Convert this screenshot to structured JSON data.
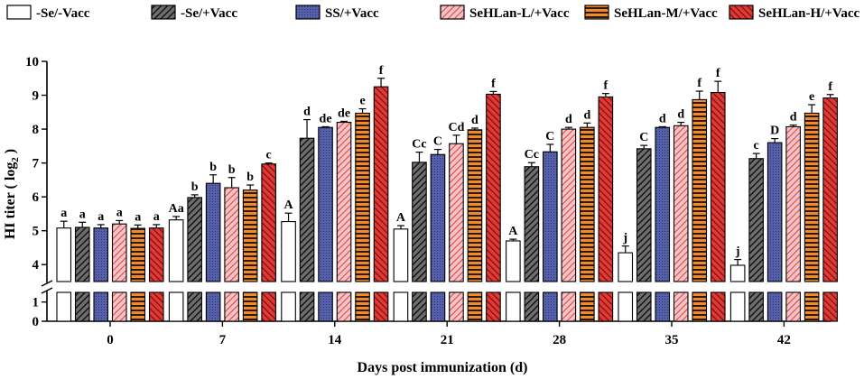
{
  "chart_data": {
    "type": "bar",
    "title": "",
    "xlabel": "Days post immunization (d)",
    "ylabel_main": "HI titer ( log",
    "ylabel_sub": "2",
    "ylabel_end": " )",
    "ylim_upper": [
      3.5,
      10
    ],
    "ylim_lower": [
      0,
      1.5
    ],
    "y_ticks_upper": [
      "4",
      "5",
      "6",
      "7",
      "8",
      "9",
      "10"
    ],
    "y_ticks_lower": [
      "0",
      "1"
    ],
    "categories": [
      "0",
      "7",
      "14",
      "21",
      "28",
      "35",
      "42"
    ],
    "legend_position": "top",
    "series": [
      {
        "name": "-Se/-Vacc",
        "pattern": "white",
        "values": [
          5.08,
          5.32,
          5.27,
          5.05,
          4.7,
          4.35,
          3.98
        ],
        "errors": [
          0.2,
          0.1,
          0.25,
          0.1,
          0.05,
          0.2,
          0.17
        ],
        "labels": [
          "a",
          "Aa",
          "A",
          "A",
          "A",
          "j",
          "j"
        ]
      },
      {
        "name": "-Se/+Vacc",
        "pattern": "dark-hatch",
        "values": [
          5.1,
          5.98,
          7.73,
          7.02,
          6.89,
          7.42,
          7.13
        ],
        "errors": [
          0.15,
          0.08,
          0.55,
          0.3,
          0.12,
          0.1,
          0.15
        ],
        "labels": [
          "a",
          "b",
          "d",
          "Cc",
          "Cc",
          "C",
          "c"
        ]
      },
      {
        "name": "SS/+Vacc",
        "pattern": "blue-dots",
        "values": [
          5.08,
          6.4,
          8.05,
          7.25,
          7.33,
          8.05,
          7.6
        ],
        "errors": [
          0.1,
          0.25,
          0.02,
          0.15,
          0.22,
          0.02,
          0.12
        ],
        "labels": [
          "a",
          "b",
          "de",
          "C",
          "C",
          "d",
          "D"
        ]
      },
      {
        "name": "SeHLan-L/+Vacc",
        "pattern": "pink-hatch",
        "values": [
          5.2,
          6.27,
          8.2,
          7.57,
          8.0,
          8.1,
          8.07
        ],
        "errors": [
          0.1,
          0.3,
          0.03,
          0.25,
          0.05,
          0.1,
          0.05
        ],
        "labels": [
          "a",
          "b",
          "de",
          "Cd",
          "d",
          "d",
          "d"
        ]
      },
      {
        "name": "SeHLan-M/+Vacc",
        "pattern": "orange-stripes",
        "values": [
          5.07,
          6.2,
          8.47,
          7.98,
          8.05,
          8.87,
          8.47
        ],
        "errors": [
          0.1,
          0.15,
          0.13,
          0.05,
          0.13,
          0.25,
          0.25
        ],
        "labels": [
          "a",
          "b",
          "e",
          "d",
          "d",
          "f",
          "e"
        ]
      },
      {
        "name": "SeHLan-H/+Vacc",
        "pattern": "red-hatch",
        "values": [
          5.08,
          6.97,
          9.25,
          9.03,
          8.95,
          9.08,
          8.92
        ],
        "errors": [
          0.1,
          0.03,
          0.25,
          0.08,
          0.1,
          0.33,
          0.1
        ],
        "labels": [
          "a",
          "c",
          "f",
          "f",
          "f",
          "f",
          "f"
        ]
      }
    ]
  }
}
